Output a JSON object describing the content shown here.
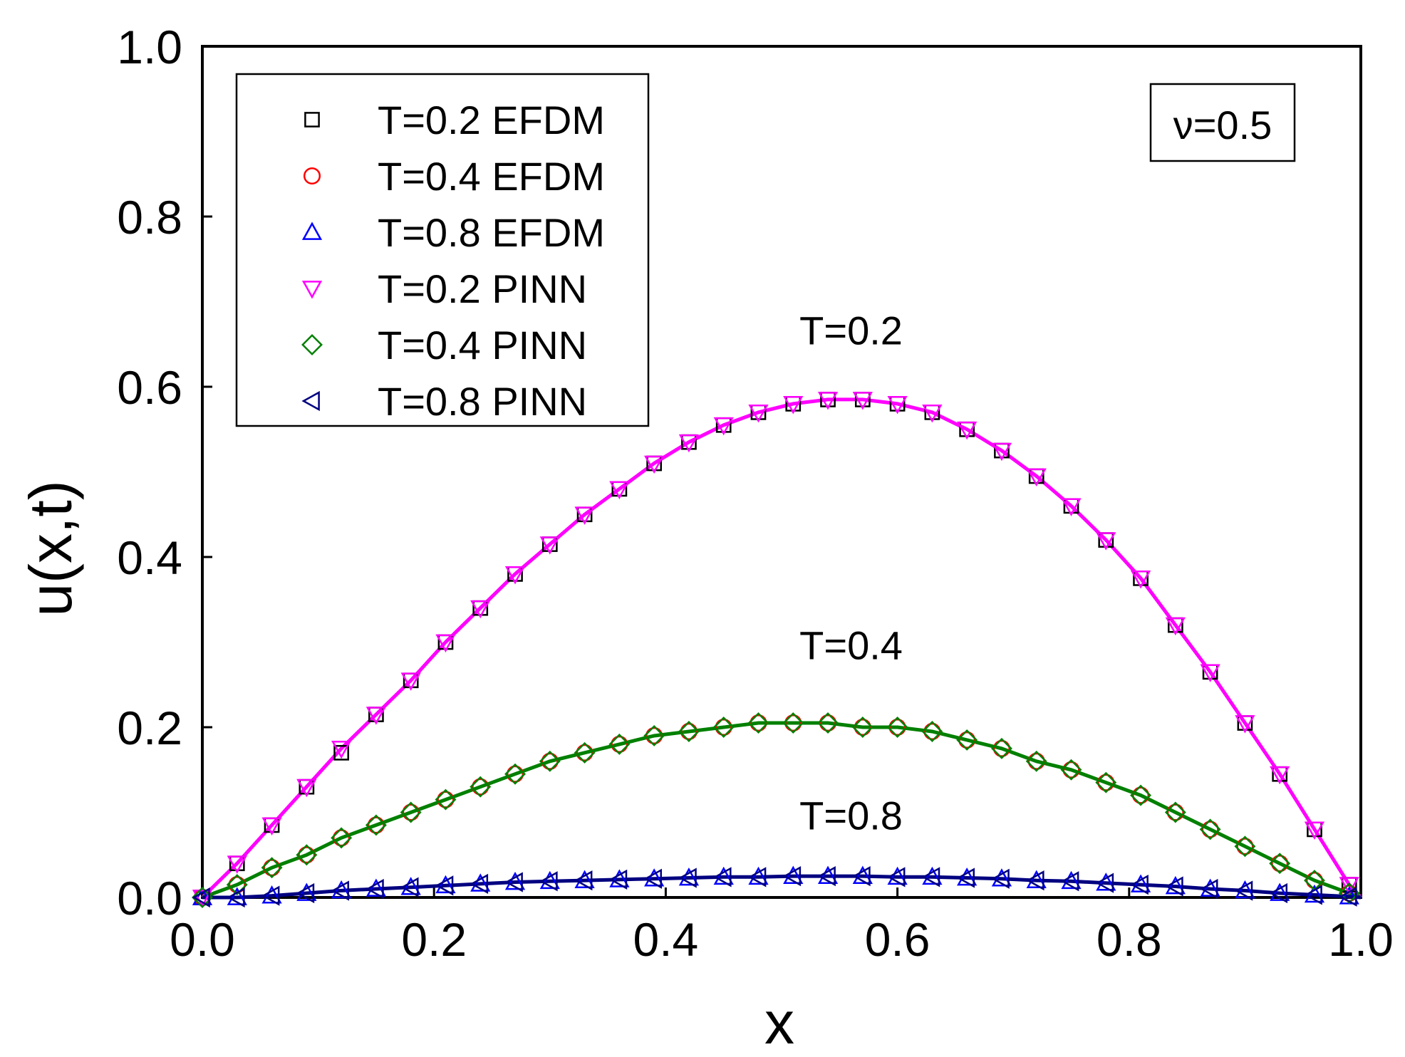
{
  "chart_data": {
    "type": "line",
    "title": "",
    "xlabel": "x",
    "ylabel": "u(x,t)",
    "xlim": [
      0.0,
      1.0
    ],
    "ylim": [
      0.0,
      1.0
    ],
    "xticks": [
      "0.0",
      "0.2",
      "0.4",
      "0.6",
      "0.8",
      "1.0"
    ],
    "yticks": [
      "0.0",
      "0.2",
      "0.4",
      "0.6",
      "0.8",
      "1.0"
    ],
    "grid": false,
    "legend_position": "top-left",
    "parameter_box": "ν=0.5",
    "annotations": [
      {
        "text": "T=0.2",
        "x": 0.56,
        "y": 0.65
      },
      {
        "text": "T=0.4",
        "x": 0.56,
        "y": 0.28
      },
      {
        "text": "T=0.8",
        "x": 0.56,
        "y": 0.08
      }
    ],
    "x": [
      0.0,
      0.03,
      0.06,
      0.09,
      0.12,
      0.15,
      0.18,
      0.21,
      0.24,
      0.27,
      0.3,
      0.33,
      0.36,
      0.39,
      0.42,
      0.45,
      0.48,
      0.51,
      0.54,
      0.57,
      0.6,
      0.63,
      0.66,
      0.69,
      0.72,
      0.75,
      0.78,
      0.81,
      0.84,
      0.87,
      0.9,
      0.93,
      0.96,
      0.99
    ],
    "series": [
      {
        "name": "T=0.2 EFDM",
        "marker": "square",
        "color": "#000000",
        "line": false,
        "values": [
          0.0,
          0.04,
          0.085,
          0.13,
          0.17,
          0.215,
          0.255,
          0.3,
          0.34,
          0.38,
          0.415,
          0.45,
          0.48,
          0.51,
          0.535,
          0.555,
          0.57,
          0.58,
          0.585,
          0.585,
          0.58,
          0.57,
          0.55,
          0.525,
          0.495,
          0.46,
          0.42,
          0.375,
          0.32,
          0.265,
          0.205,
          0.145,
          0.08,
          0.015
        ]
      },
      {
        "name": "T=0.4 EFDM",
        "marker": "circle",
        "color": "#ff0000",
        "line": false,
        "values": [
          0.0,
          0.015,
          0.035,
          0.05,
          0.07,
          0.085,
          0.1,
          0.115,
          0.13,
          0.145,
          0.16,
          0.17,
          0.18,
          0.19,
          0.195,
          0.2,
          0.205,
          0.205,
          0.205,
          0.2,
          0.2,
          0.195,
          0.185,
          0.175,
          0.16,
          0.15,
          0.135,
          0.12,
          0.1,
          0.08,
          0.06,
          0.04,
          0.02,
          0.005
        ]
      },
      {
        "name": "T=0.8 EFDM",
        "marker": "triangle-up",
        "color": "#0000ff",
        "line": false,
        "values": [
          0.0,
          0.0,
          0.002,
          0.005,
          0.008,
          0.01,
          0.012,
          0.014,
          0.016,
          0.018,
          0.019,
          0.02,
          0.021,
          0.022,
          0.023,
          0.024,
          0.024,
          0.025,
          0.025,
          0.025,
          0.024,
          0.024,
          0.023,
          0.022,
          0.02,
          0.019,
          0.017,
          0.015,
          0.013,
          0.01,
          0.008,
          0.005,
          0.003,
          0.001
        ]
      },
      {
        "name": "T=0.2 PINN",
        "marker": "triangle-down",
        "color": "#ff00ff",
        "line": true,
        "values": [
          0.0,
          0.04,
          0.085,
          0.13,
          0.175,
          0.215,
          0.255,
          0.3,
          0.34,
          0.38,
          0.415,
          0.45,
          0.48,
          0.51,
          0.535,
          0.555,
          0.57,
          0.58,
          0.585,
          0.585,
          0.58,
          0.57,
          0.55,
          0.525,
          0.495,
          0.46,
          0.42,
          0.375,
          0.32,
          0.265,
          0.205,
          0.145,
          0.08,
          0.015
        ]
      },
      {
        "name": "T=0.4 PINN",
        "marker": "diamond",
        "color": "#008000",
        "line": true,
        "values": [
          0.0,
          0.015,
          0.035,
          0.05,
          0.07,
          0.085,
          0.1,
          0.115,
          0.13,
          0.145,
          0.16,
          0.17,
          0.18,
          0.19,
          0.195,
          0.2,
          0.205,
          0.205,
          0.205,
          0.2,
          0.2,
          0.195,
          0.185,
          0.175,
          0.16,
          0.15,
          0.135,
          0.12,
          0.1,
          0.08,
          0.06,
          0.04,
          0.02,
          0.005
        ]
      },
      {
        "name": "T=0.8 PINN",
        "marker": "triangle-left",
        "color": "#000080",
        "line": true,
        "values": [
          0.0,
          0.0,
          0.002,
          0.005,
          0.008,
          0.01,
          0.012,
          0.014,
          0.016,
          0.018,
          0.019,
          0.02,
          0.021,
          0.022,
          0.023,
          0.024,
          0.024,
          0.025,
          0.025,
          0.025,
          0.024,
          0.024,
          0.023,
          0.022,
          0.02,
          0.019,
          0.017,
          0.015,
          0.013,
          0.01,
          0.008,
          0.005,
          0.003,
          0.001
        ]
      }
    ]
  }
}
